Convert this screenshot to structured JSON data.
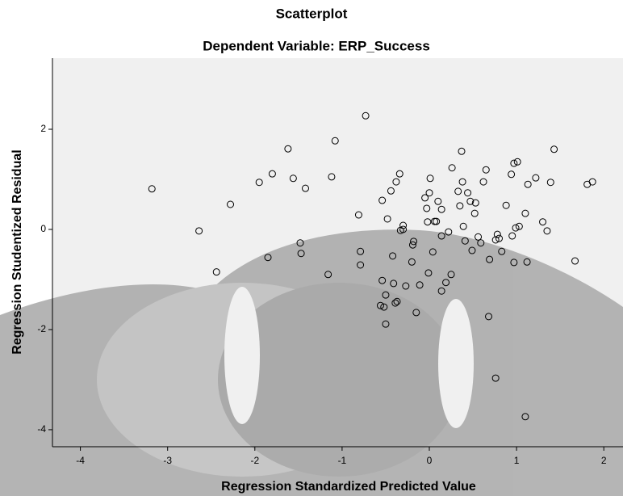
{
  "chart_data": {
    "type": "scatter",
    "title": "Scatterplot",
    "subtitle": "Dependent Variable: ERP_Success",
    "x_label": "Regression Standardized Predicted Value",
    "y_label": "Regression Studentized Residual",
    "xlim": [
      -4.32,
      2.22
    ],
    "ylim": [
      -4.34,
      3.42
    ],
    "xticks": [
      -4,
      -3,
      -2,
      -1,
      0,
      1,
      2
    ],
    "yticks": [
      -4,
      -2,
      0,
      2
    ],
    "color": "#000000",
    "x": [
      -3.18,
      -2.64,
      -2.44,
      -2.28,
      -1.95,
      -1.85,
      -1.8,
      -1.62,
      -1.56,
      -1.48,
      -1.47,
      -1.42,
      -1.16,
      -1.12,
      -1.08,
      -0.81,
      -0.79,
      -0.79,
      -0.73,
      -0.54,
      -0.54,
      -0.56,
      -0.52,
      -0.5,
      -0.5,
      -0.48,
      -0.44,
      -0.42,
      -0.41,
      -0.38,
      -0.34,
      -0.37,
      -0.39,
      -0.33,
      -0.3,
      -0.3,
      -0.27,
      -0.2,
      -0.19,
      -0.18,
      -0.15,
      -0.11,
      -0.05,
      -0.03,
      -0.02,
      -0.01,
      0.0,
      0.01,
      0.04,
      0.06,
      0.08,
      0.1,
      0.14,
      0.14,
      0.14,
      0.19,
      0.22,
      0.25,
      0.26,
      0.33,
      0.35,
      0.38,
      0.37,
      0.39,
      0.41,
      0.44,
      0.47,
      0.49,
      0.52,
      0.53,
      0.56,
      0.59,
      0.62,
      0.65,
      0.69,
      0.68,
      0.76,
      0.76,
      0.78,
      0.8,
      0.83,
      0.88,
      0.94,
      0.95,
      0.97,
      0.97,
      1.01,
      0.99,
      1.03,
      1.1,
      1.13,
      1.12,
      1.1,
      1.22,
      1.3,
      1.35,
      1.39,
      1.43,
      1.67,
      1.81,
      1.87
    ],
    "y": [
      0.81,
      -0.03,
      -0.85,
      0.5,
      0.94,
      -0.56,
      1.11,
      1.61,
      1.02,
      -0.27,
      -0.48,
      0.82,
      -0.9,
      1.05,
      1.77,
      0.29,
      -0.44,
      -0.71,
      2.27,
      0.58,
      -1.02,
      -1.52,
      -1.55,
      -1.89,
      -1.31,
      0.21,
      0.77,
      -0.53,
      -1.08,
      0.95,
      1.11,
      -1.44,
      -1.47,
      -0.02,
      0.08,
      0.0,
      -1.13,
      -0.65,
      -0.31,
      -0.24,
      -1.66,
      -1.11,
      0.63,
      0.42,
      0.15,
      -0.87,
      0.73,
      1.02,
      -0.45,
      0.16,
      0.16,
      0.56,
      -0.13,
      0.4,
      -1.23,
      -1.06,
      -0.05,
      -0.9,
      1.23,
      0.76,
      0.47,
      0.95,
      1.56,
      0.06,
      -0.23,
      0.73,
      0.56,
      -0.42,
      0.32,
      0.53,
      -0.15,
      -0.27,
      0.95,
      1.19,
      -0.6,
      -1.74,
      -2.97,
      -0.21,
      -0.1,
      -0.18,
      -0.44,
      0.48,
      1.1,
      -0.13,
      -0.66,
      1.32,
      1.35,
      0.03,
      0.06,
      0.32,
      0.9,
      -0.65,
      -3.74,
      1.03,
      0.15,
      -0.03,
      0.94,
      1.6,
      -0.63,
      0.9,
      0.95
    ]
  }
}
